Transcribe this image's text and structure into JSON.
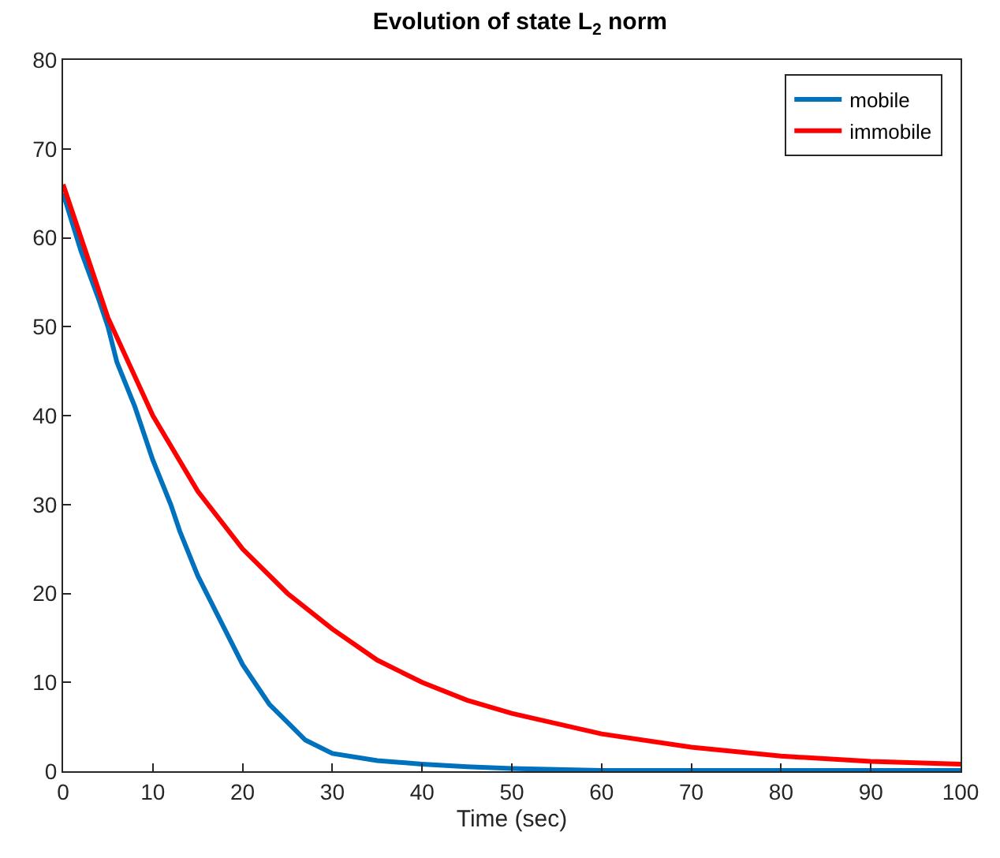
{
  "chart_data": {
    "type": "line",
    "title": "Evolution of state L$_{2}$ norm",
    "xlabel": "Time (sec)",
    "xlim": [
      0,
      100
    ],
    "xticks": [
      0,
      10,
      20,
      30,
      40,
      50,
      60,
      70,
      80,
      90,
      100
    ],
    "ylim": [
      0,
      80
    ],
    "yticks": [
      0,
      10,
      20,
      30,
      40,
      50,
      60,
      70,
      80
    ],
    "legend": "top right",
    "line_style": "solid",
    "marker": "none",
    "series": [
      {
        "name": "mobile",
        "color": "#0072bd",
        "x": [
          0,
          2,
          4,
          5,
          6,
          8,
          10,
          12,
          13,
          15,
          17,
          18,
          20,
          22,
          23,
          25,
          27,
          30,
          35,
          40,
          45,
          50,
          60,
          70,
          80,
          90,
          100
        ],
        "values": [
          65,
          58.5,
          53,
          50,
          46,
          41,
          35,
          30,
          27,
          22,
          18,
          16,
          12,
          9,
          7.5,
          5.5,
          3.5,
          2,
          1.2,
          0.8,
          0.5,
          0.3,
          0.1,
          0.1,
          0.1,
          0.1,
          0.1
        ]
      },
      {
        "name": "immobile",
        "color": "#ff0000",
        "x": [
          0,
          5,
          10,
          15,
          20,
          25,
          30,
          35,
          40,
          45,
          50,
          60,
          70,
          80,
          90,
          100
        ],
        "values": [
          66,
          51,
          40,
          31.5,
          25,
          20,
          16,
          12.5,
          10,
          8,
          6.5,
          4.2,
          2.7,
          1.7,
          1.1,
          0.8
        ]
      }
    ]
  }
}
